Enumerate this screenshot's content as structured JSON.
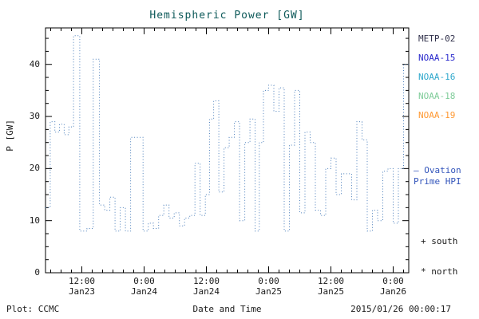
{
  "footer": {
    "plot_credit": "Plot: CCMC",
    "timestamp": "2015/01/26 00:00:17"
  },
  "legend": {
    "satellites": [
      {
        "label": "METP-02",
        "color": "#30304a"
      },
      {
        "label": "NOAA-15",
        "color": "#2a2acc"
      },
      {
        "label": "NOAA-16",
        "color": "#2fa8cc"
      },
      {
        "label": "NOAA-18",
        "color": "#7fcc99"
      },
      {
        "label": "NOAA-19",
        "color": "#ff9933"
      }
    ],
    "ovation_line1": "– Ovation",
    "ovation_line2": "Prime HPI",
    "ovation_color": "#3355bb",
    "south_marker": "+ south",
    "north_marker": "* north"
  },
  "chart_data": {
    "type": "line",
    "title": "Hemispheric Power [GW]",
    "xlabel": "Date and Time",
    "ylabel": "P [GW]",
    "ylim": [
      0,
      47
    ],
    "yticks": [
      0,
      10,
      20,
      30,
      40
    ],
    "y_minor_step": 2.5,
    "x_axis_hours_from_jan23_0000": [
      5,
      75
    ],
    "x_minor_step": 2,
    "xticks": [
      {
        "hour": 12,
        "line1": "12:00",
        "line2": "Jan23"
      },
      {
        "hour": 24,
        "line1": "0:00",
        "line2": "Jan24"
      },
      {
        "hour": 36,
        "line1": "12:00",
        "line2": "Jan24"
      },
      {
        "hour": 48,
        "line1": "0:00",
        "line2": "Jan25"
      },
      {
        "hour": 60,
        "line1": "12:00",
        "line2": "Jan25"
      },
      {
        "hour": 72,
        "line1": "0:00",
        "line2": "Jan26"
      }
    ],
    "line_color": "#4a7ebb",
    "line_style": "dotted-step",
    "axis_color": "#000000",
    "series": [
      {
        "name": "Ovation Prime HPI",
        "points_hour_gw": [
          [
            5,
            12.5
          ],
          [
            5.9,
            29
          ],
          [
            6.8,
            27
          ],
          [
            7.7,
            28.5
          ],
          [
            8.6,
            26.5
          ],
          [
            9.5,
            28
          ],
          [
            10.4,
            45.5
          ],
          [
            11.6,
            8
          ],
          [
            13,
            8.5
          ],
          [
            14.2,
            41
          ],
          [
            15.4,
            13
          ],
          [
            16.4,
            12
          ],
          [
            17.4,
            14.5
          ],
          [
            18.4,
            8
          ],
          [
            19.4,
            12.5
          ],
          [
            20.4,
            8
          ],
          [
            21.4,
            26
          ],
          [
            23,
            26
          ],
          [
            23.8,
            8
          ],
          [
            24.8,
            9.5
          ],
          [
            25.8,
            8.5
          ],
          [
            26.8,
            11
          ],
          [
            27.8,
            13
          ],
          [
            28.8,
            10.5
          ],
          [
            29.8,
            11.5
          ],
          [
            30.8,
            9
          ],
          [
            31.8,
            10.5
          ],
          [
            32.8,
            11
          ],
          [
            33.8,
            21
          ],
          [
            34.8,
            11
          ],
          [
            35.8,
            15
          ],
          [
            36.6,
            29.5
          ],
          [
            37.4,
            33
          ],
          [
            38.4,
            15.5
          ],
          [
            39.4,
            24
          ],
          [
            40.4,
            26
          ],
          [
            41.4,
            29
          ],
          [
            42.4,
            10
          ],
          [
            43.4,
            25
          ],
          [
            44.4,
            29.5
          ],
          [
            45.4,
            8
          ],
          [
            46.2,
            25
          ],
          [
            47,
            35
          ],
          [
            48,
            36
          ],
          [
            49,
            31
          ],
          [
            50,
            35.5
          ],
          [
            51,
            8
          ],
          [
            52,
            24.5
          ],
          [
            53,
            35
          ],
          [
            54,
            11.5
          ],
          [
            55,
            27
          ],
          [
            56,
            25
          ],
          [
            57,
            12
          ],
          [
            58,
            11
          ],
          [
            59,
            20
          ],
          [
            60,
            22
          ],
          [
            61,
            15
          ],
          [
            62,
            19
          ],
          [
            63,
            19
          ],
          [
            64,
            14
          ],
          [
            65,
            29
          ],
          [
            66,
            25.5
          ],
          [
            67,
            8
          ],
          [
            68,
            12
          ],
          [
            69,
            10
          ],
          [
            70,
            19.5
          ],
          [
            71,
            20
          ],
          [
            72,
            9.5
          ],
          [
            73,
            20
          ],
          [
            74,
            40
          ]
        ]
      }
    ]
  }
}
